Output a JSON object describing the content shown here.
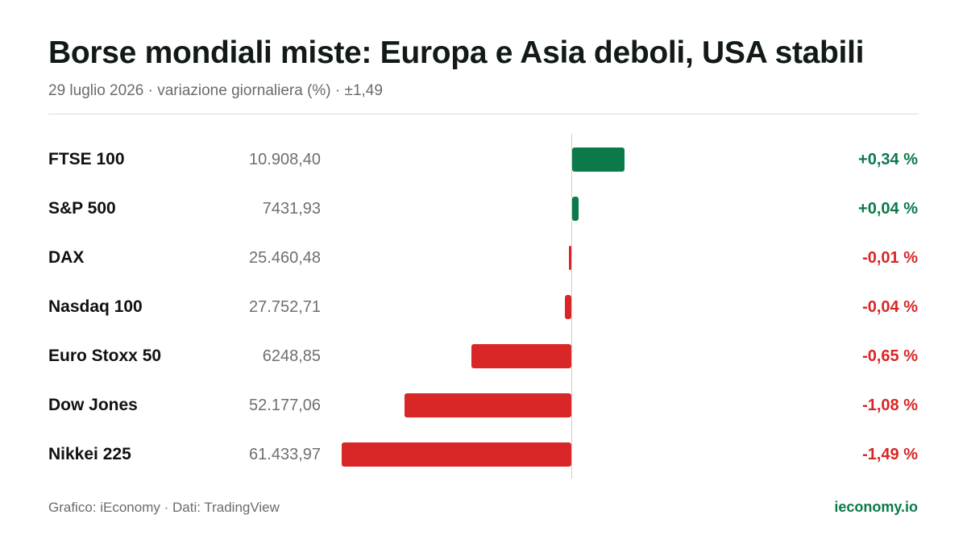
{
  "header": {
    "title": "Borse mondiali miste: Europa e Asia deboli, USA stabili",
    "subtitle": "29 luglio 2026 · variazione giornaliera (%) · ±1,49"
  },
  "footer": {
    "source": "Grafico: iEconomy · Dati: TradingView",
    "brand": "ieconomy.io"
  },
  "colors": {
    "positive": "#0b7a4b",
    "negative": "#d92626",
    "brand": "#0b7a4b"
  },
  "chart_data": {
    "type": "bar",
    "orientation": "horizontal",
    "title": "Borse mondiali miste: Europa e Asia deboli, USA stabili",
    "subtitle": "29 luglio 2026 · variazione giornaliera (%) · ±1,49",
    "xlim": [
      -1.49,
      1.49
    ],
    "categories": [
      "FTSE 100",
      "S&P 500",
      "DAX",
      "Nasdaq 100",
      "Euro Stoxx 50",
      "Dow Jones",
      "Nikkei 225"
    ],
    "prices": [
      "10.908,40",
      "7431,93",
      "25.460,48",
      "27.752,71",
      "6248,85",
      "52.177,06",
      "61.433,97"
    ],
    "values": [
      0.34,
      0.04,
      -0.01,
      -0.04,
      -0.65,
      -1.08,
      -1.49
    ],
    "labels": [
      "+0,34 %",
      "+0,04 %",
      "-0,01 %",
      "-0,04 %",
      "-0,65 %",
      "-1,08 %",
      "-1,49 %"
    ],
    "grid": false,
    "legend": "none"
  }
}
